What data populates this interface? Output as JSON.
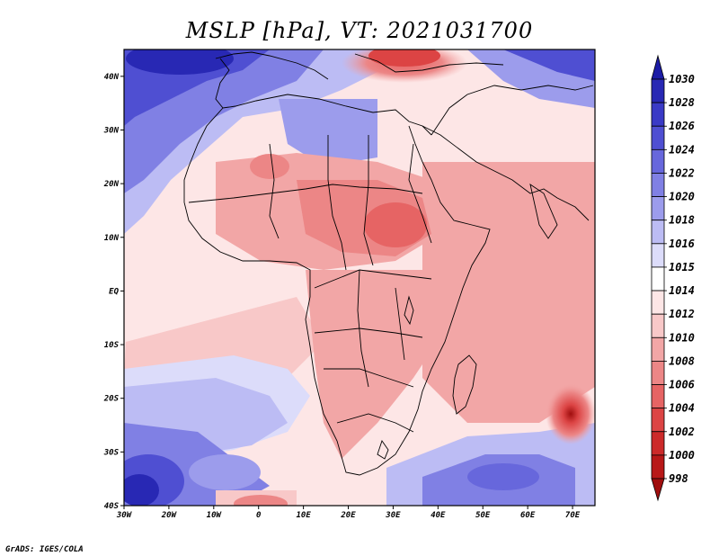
{
  "map": {
    "title": "MSLP [hPa], VT: 2021031700",
    "credit": "GrADS: IGES/COLA",
    "lat_labels": [
      "40N",
      "30N",
      "20N",
      "10N",
      "EQ",
      "10S",
      "20S",
      "30S",
      "40S"
    ],
    "lon_labels": [
      "30W",
      "20W",
      "10W",
      "0",
      "10E",
      "20E",
      "30E",
      "40E",
      "50E",
      "60E",
      "70E"
    ],
    "extent": {
      "lon_min": -30,
      "lon_max": 75,
      "lat_min": -40,
      "lat_max": 45
    }
  },
  "colorbar": {
    "labels": [
      "1030",
      "1028",
      "1026",
      "1024",
      "1022",
      "1020",
      "1018",
      "1016",
      "1015",
      "1014",
      "1012",
      "1010",
      "1008",
      "1006",
      "1004",
      "1002",
      "1000",
      "998"
    ],
    "colors": [
      "#1c1ca6",
      "#2828b4",
      "#3a3ac6",
      "#4f4fd2",
      "#6767dc",
      "#8080e4",
      "#9c9cec",
      "#bcbcf4",
      "#dcdcfa",
      "#ffffff",
      "#fde6e6",
      "#f8c8c8",
      "#f2a6a6",
      "#ec8686",
      "#e66464",
      "#dc4444",
      "#cc2a2a",
      "#b81818",
      "#a00e0e"
    ]
  }
}
